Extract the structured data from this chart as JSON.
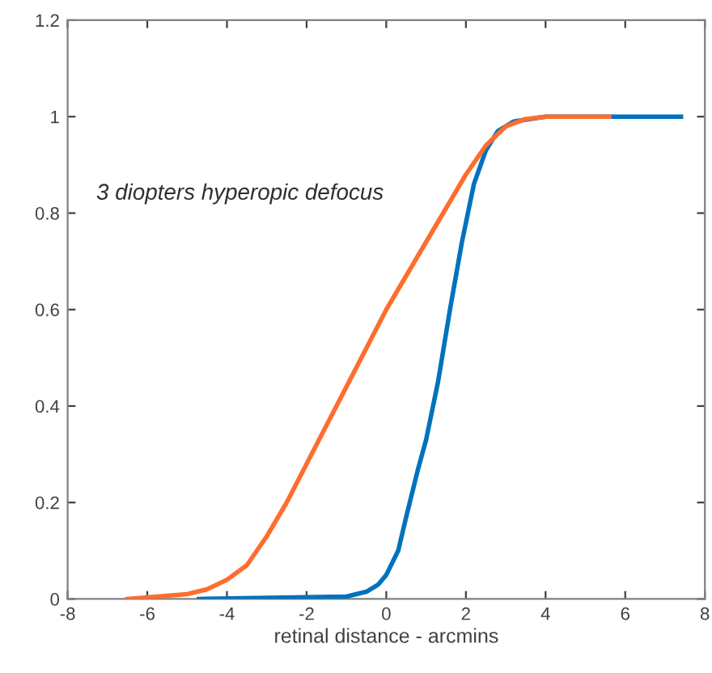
{
  "chart_data": {
    "type": "line",
    "xlabel": "retinal distance - arcmins",
    "xlim": [
      -8,
      8
    ],
    "xticks": [
      -8,
      -6,
      -4,
      -2,
      0,
      2,
      4,
      6,
      8
    ],
    "ylim": [
      0,
      1.2
    ],
    "yticks": [
      0,
      0.2,
      0.4,
      0.6,
      0.8,
      1,
      1.2
    ],
    "grid": false,
    "legend": false,
    "marker": "none",
    "line_style": "solid",
    "annotations": [
      "3 diopters hyperopic defocus"
    ],
    "series": [
      {
        "color": "#ff6d2e",
        "x": [
          -6.5,
          -5,
          -4.5,
          -4,
          -3.5,
          -3,
          -2.5,
          -2,
          -1.5,
          -1,
          -0.5,
          0,
          0.5,
          1,
          1.5,
          2,
          2.5,
          3,
          3.5,
          4,
          5.6
        ],
        "values": [
          0,
          0.01,
          0.02,
          0.04,
          0.07,
          0.13,
          0.2,
          0.28,
          0.36,
          0.44,
          0.52,
          0.6,
          0.67,
          0.74,
          0.81,
          0.88,
          0.94,
          0.98,
          0.995,
          1,
          1
        ]
      },
      {
        "color": "#0072bd",
        "x": [
          -4.7,
          -1,
          -0.5,
          -0.2,
          0,
          0.3,
          0.5,
          0.8,
          1,
          1.3,
          1.6,
          1.9,
          2.2,
          2.5,
          2.8,
          3.2,
          4,
          7.4
        ],
        "values": [
          0,
          0.005,
          0.015,
          0.03,
          0.05,
          0.1,
          0.17,
          0.27,
          0.33,
          0.45,
          0.6,
          0.74,
          0.86,
          0.93,
          0.97,
          0.99,
          1,
          1
        ]
      }
    ]
  }
}
